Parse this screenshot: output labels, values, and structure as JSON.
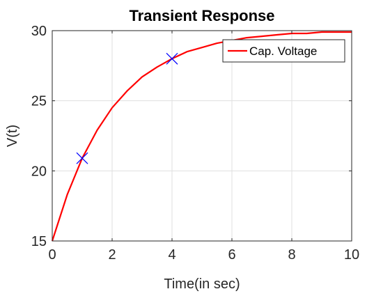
{
  "chart_data": {
    "type": "line",
    "title": "Transient Response",
    "xlabel": "Time(in sec)",
    "ylabel": "V(t)",
    "xlim": [
      0,
      10
    ],
    "ylim": [
      15,
      30
    ],
    "x_ticks": [
      0,
      2,
      4,
      6,
      8,
      10
    ],
    "y_ticks": [
      15,
      20,
      25,
      30
    ],
    "x_tick_labels": [
      "0",
      "2",
      "4",
      "6",
      "8",
      "10"
    ],
    "y_tick_labels": [
      "15",
      "20",
      "25",
      "30"
    ],
    "grid": true,
    "legend_position": "top-right",
    "series": [
      {
        "name": "Cap. Voltage",
        "color": "#ff0000",
        "x": [
          0,
          0.5,
          1,
          1.5,
          2,
          2.5,
          3,
          3.5,
          4,
          4.5,
          5,
          5.5,
          6,
          6.5,
          7,
          7.5,
          8,
          8.5,
          9,
          9.5,
          10
        ],
        "y": [
          15.0,
          18.3,
          20.9,
          22.9,
          24.5,
          25.7,
          26.7,
          27.4,
          28.0,
          28.5,
          28.8,
          29.1,
          29.3,
          29.5,
          29.6,
          29.7,
          29.8,
          29.8,
          29.9,
          29.9,
          29.9
        ]
      }
    ],
    "markers": [
      {
        "x": 1,
        "y": 20.9,
        "symbol": "x",
        "color": "#0000ff"
      },
      {
        "x": 4,
        "y": 28.0,
        "symbol": "x",
        "color": "#0000ff"
      }
    ]
  }
}
